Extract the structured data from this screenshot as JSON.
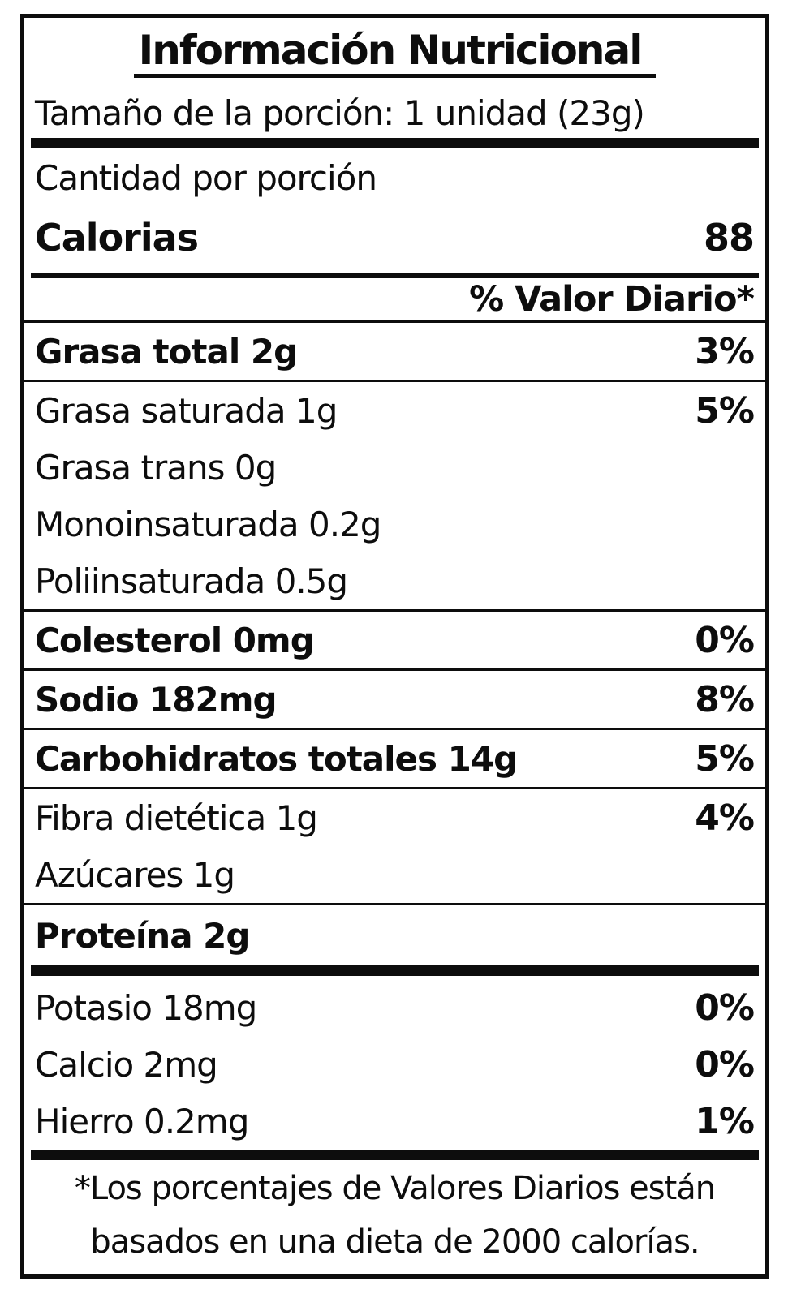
{
  "label": {
    "title": "Información Nutricional",
    "serving": "Tamaño de la porción: 1 unidad (23g)",
    "amount_per_serving": "Cantidad por porción",
    "calories": {
      "label": "Calorias",
      "value": "88"
    },
    "dv_header": "% Valor Diario*",
    "nutrients": [
      {
        "lines": [
          {
            "text": "Grasa total 2g",
            "dv": "3%"
          }
        ]
      },
      {
        "lines": [
          {
            "text": "Grasa saturada 1g",
            "dv": "5%"
          },
          {
            "text": "Grasa trans 0g"
          },
          {
            "text": "Monoinsaturada 0.2g"
          },
          {
            "text": "Poliinsaturada 0.5g"
          }
        ]
      },
      {
        "lines": [
          {
            "text": "Colesterol 0mg",
            "dv": "0%"
          }
        ]
      },
      {
        "lines": [
          {
            "text": "Sodio 182mg",
            "dv": "8%"
          }
        ]
      },
      {
        "lines": [
          {
            "text": "Carbohidratos totales 14g",
            "dv": "5%"
          }
        ]
      },
      {
        "lines": [
          {
            "text": "Fibra dietética 1g",
            "dv": "4%"
          },
          {
            "text": "Azúcares 1g"
          }
        ]
      },
      {
        "lines": [
          {
            "text": "Proteína 2g"
          }
        ]
      }
    ],
    "minerals": [
      {
        "text": "Potasio 18mg",
        "dv": "0%"
      },
      {
        "text": "Calcio 2mg",
        "dv": "0%"
      },
      {
        "text": "Hierro 0.2mg",
        "dv": "1%"
      }
    ],
    "footnote": [
      "*Los porcentajes de Valores Diarios están",
      "basados en una dieta de 2000 calorías."
    ],
    "colors": {
      "ink": "#0d0d0d",
      "background": "#ffffff"
    }
  }
}
